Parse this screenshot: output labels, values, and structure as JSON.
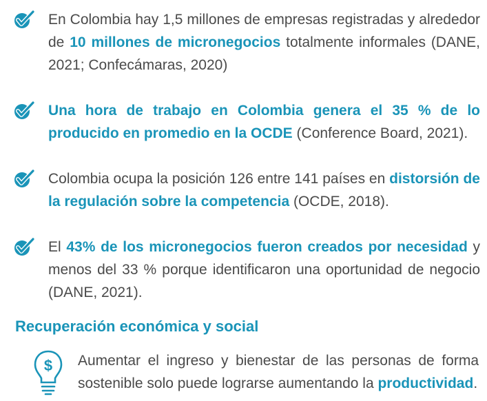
{
  "items": [
    {
      "parts": [
        {
          "t": "En Colombia hay 1,5 millones de empresas registradas y alrededor de ",
          "hl": false
        },
        {
          "t": "10 millones de micronegocios",
          "hl": true
        },
        {
          "t": " totalmente informales (DANE, 2021; Confecámaras, 2020)",
          "hl": false
        }
      ]
    },
    {
      "parts": [
        {
          "t": "Una hora de trabajo en Colombia genera el 35 % de lo producido en promedio en la OCDE",
          "hl": true
        },
        {
          "t": " (Conference Board, 2021).",
          "hl": false
        }
      ]
    },
    {
      "parts": [
        {
          "t": "Colombia ocupa la posición 126 entre 141 países en ",
          "hl": false
        },
        {
          "t": "distorsión de la regulación sobre la competencia",
          "hl": true
        },
        {
          "t": " (OCDE, 2018).",
          "hl": false
        }
      ]
    },
    {
      "parts": [
        {
          "t": "El ",
          "hl": false
        },
        {
          "t": "43% de los micronegocios fueron creados por necesidad",
          "hl": true
        },
        {
          "t": " y menos del 33 % porque identificaron una oportunidad de negocio (DANE, 2021).",
          "hl": false
        }
      ]
    }
  ],
  "section": {
    "title": "Recuperación económica y social",
    "parts": [
      {
        "t": "Aumentar el ingreso y bienestar de las personas de forma sostenible solo puede lograrse aumentando la ",
        "hl": false
      },
      {
        "t": "productividad",
        "hl": true
      },
      {
        "t": ".",
        "hl": false
      }
    ]
  },
  "colors": {
    "accent": "#1a94b8",
    "text": "#4a4a4a"
  },
  "icons": {
    "bullet": "checkmark-icon",
    "section": "lightbulb-dollar-icon"
  }
}
